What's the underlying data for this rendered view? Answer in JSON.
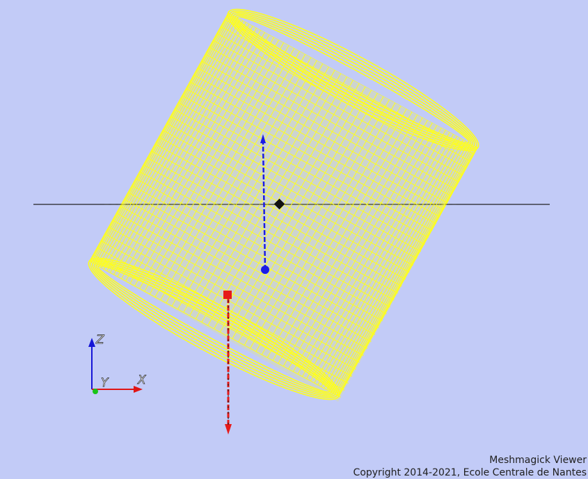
{
  "viewer": {
    "background_color": "#c2cbf7",
    "mesh_color": "#ffff1a",
    "mesh_style": "wireframe",
    "mesh_shape": "cylinder"
  },
  "glyphs": {
    "blue_arrow_color": "#1a1ae6",
    "red_arrow_color": "#e61a1a",
    "center_marker_color": "#111111"
  },
  "orientation_triad": {
    "z_label": "Z",
    "y_label": "Y",
    "x_label": "X",
    "z_color": "#1515d6",
    "y_color": "#18c418",
    "x_color": "#e01515"
  },
  "footer": {
    "title": "Meshmagick Viewer",
    "copyright": "Copyright 2014-2021, Ecole Centrale de Nantes"
  }
}
